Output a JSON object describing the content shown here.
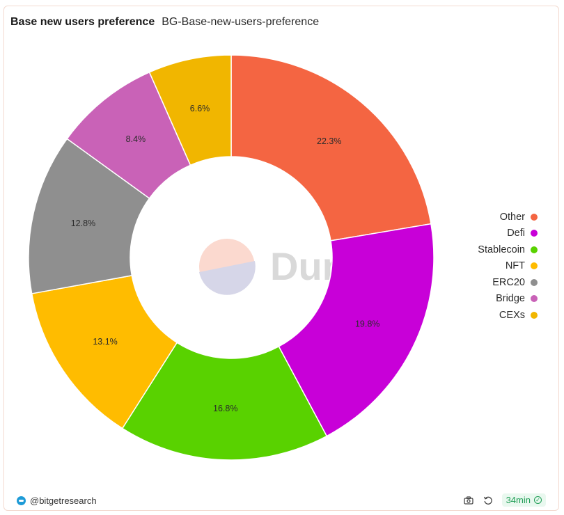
{
  "header": {
    "title": "Base new users preference",
    "subtitle": "BG-Base-new-users-preference"
  },
  "chart_data": {
    "type": "pie",
    "donut": true,
    "categories": [
      "Other",
      "Defi",
      "Stablecoin",
      "NFT",
      "ERC20",
      "Bridge",
      "CEXs"
    ],
    "values": [
      22.3,
      19.8,
      16.8,
      13.1,
      12.8,
      8.4,
      6.6
    ],
    "labels": [
      "22.3%",
      "19.8%",
      "16.8%",
      "13.1%",
      "12.8%",
      "8.4%",
      "6.6%"
    ],
    "colors": [
      "#f46542",
      "#c800d8",
      "#59d200",
      "#ffbc00",
      "#8f8f8f",
      "#c962b7",
      "#f1b600"
    ],
    "legend_position": "right",
    "watermark": "Dune"
  },
  "footer": {
    "author": "@bitgetresearch",
    "freshness": "34min",
    "camera_icon": "camera-icon",
    "refresh_icon": "refresh-icon",
    "check_icon": "check-circle-icon"
  }
}
